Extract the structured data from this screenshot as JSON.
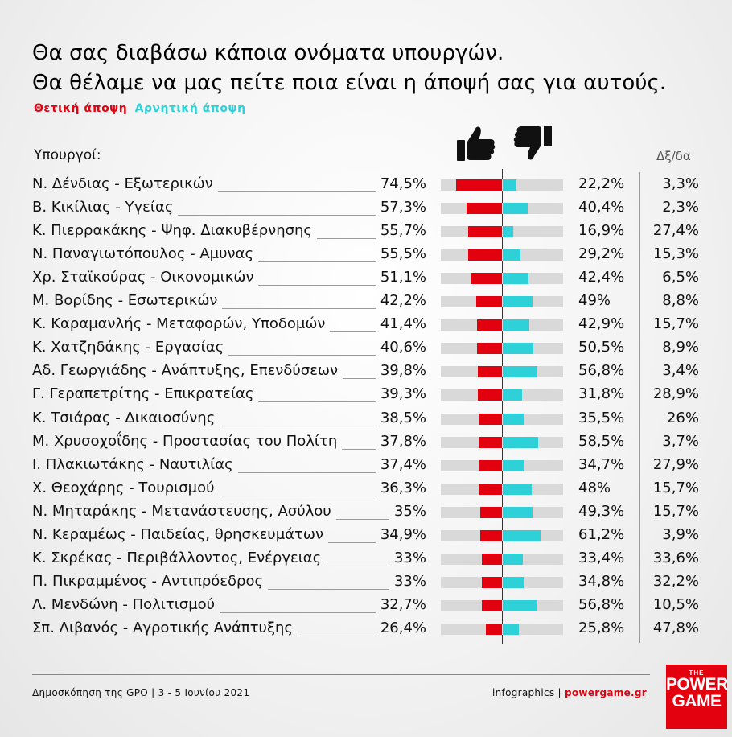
{
  "header": {
    "title_line1": "Θα σας διαβάσω κάποια ονόματα υπουργών.",
    "title_line2": "Θα θέλαμε να μας πείτε ποια είναι η άποψή σας για αυτούς."
  },
  "legend": {
    "positive": "Θετική άποψη",
    "negative": "Αρνητική άποψη"
  },
  "columns": {
    "ministers": "Υπουργοί:",
    "dk": "Δξ/δα"
  },
  "colors": {
    "positive": "#e3000f",
    "negative": "#2fd1d8",
    "track": "#d9d9d9"
  },
  "icons": {
    "positive": "thumbs-up-icon",
    "negative": "thumbs-down-icon"
  },
  "chart_data": {
    "type": "bar",
    "series_names": [
      "Θετική άποψη",
      "Αρνητική άποψη",
      "Δξ/δα"
    ],
    "rows": [
      {
        "name": "Ν. Δένδιας",
        "ministry": "Εξωτερικών",
        "pos": 74.5,
        "neg": 22.2,
        "dk": 3.3,
        "pos_label": "74,5%",
        "neg_label": "22,2%",
        "dk_label": "3,3%"
      },
      {
        "name": "Β. Κικίλιας",
        "ministry": "Υγείας",
        "pos": 57.3,
        "neg": 40.4,
        "dk": 2.3,
        "pos_label": "57,3%",
        "neg_label": "40,4%",
        "dk_label": "2,3%"
      },
      {
        "name": "Κ. Πιερρακάκης",
        "ministry": "Ψηφ. Διακυβέρνησης",
        "pos": 55.7,
        "neg": 16.9,
        "dk": 27.4,
        "pos_label": "55,7%",
        "neg_label": "16,9%",
        "dk_label": "27,4%"
      },
      {
        "name": "Ν. Παναγιωτόπουλος",
        "ministry": "Αμυνας",
        "pos": 55.5,
        "neg": 29.2,
        "dk": 15.3,
        "pos_label": "55,5%",
        "neg_label": "29,2%",
        "dk_label": "15,3%"
      },
      {
        "name": "Χρ. Σταϊκούρας",
        "ministry": "Οικονομικών",
        "pos": 51.1,
        "neg": 42.4,
        "dk": 6.5,
        "pos_label": "51,1%",
        "neg_label": "42,4%",
        "dk_label": "6,5%"
      },
      {
        "name": "Μ. Βορίδης",
        "ministry": "Εσωτερικών",
        "pos": 42.2,
        "neg": 49,
        "dk": 8.8,
        "pos_label": "42,2%",
        "neg_label": "49%",
        "dk_label": "8,8%"
      },
      {
        "name": "Κ. Καραμανλής",
        "ministry": "Μεταφορών, Υποδομών",
        "pos": 41.4,
        "neg": 42.9,
        "dk": 15.7,
        "pos_label": "41,4%",
        "neg_label": "42,9%",
        "dk_label": "15,7%"
      },
      {
        "name": "Κ. Χατζηδάκης",
        "ministry": "Εργασίας",
        "pos": 40.6,
        "neg": 50.5,
        "dk": 8.9,
        "pos_label": "40,6%",
        "neg_label": "50,5%",
        "dk_label": "8,9%"
      },
      {
        "name": "Αδ. Γεωργιάδης",
        "ministry": "Ανάπτυξης, Επενδύσεων",
        "pos": 39.8,
        "neg": 56.8,
        "dk": 3.4,
        "pos_label": "39,8%",
        "neg_label": "56,8%",
        "dk_label": "3,4%"
      },
      {
        "name": "Γ. Γεραπετρίτης",
        "ministry": "Επικρατείας",
        "pos": 39.3,
        "neg": 31.8,
        "dk": 28.9,
        "pos_label": "39,3%",
        "neg_label": "31,8%",
        "dk_label": "28,9%"
      },
      {
        "name": "Κ. Τσιάρας",
        "ministry": "Δικαιοσύνης",
        "pos": 38.5,
        "neg": 35.5,
        "dk": 26,
        "pos_label": "38,5%",
        "neg_label": "35,5%",
        "dk_label": "26%"
      },
      {
        "name": "Μ. Χρυσοχοΐδης",
        "ministry": "Προστασίας του Πολίτη",
        "pos": 37.8,
        "neg": 58.5,
        "dk": 3.7,
        "pos_label": "37,8%",
        "neg_label": "58,5%",
        "dk_label": "3,7%"
      },
      {
        "name": "Ι. Πλακιωτάκης",
        "ministry": "Ναυτιλίας",
        "pos": 37.4,
        "neg": 34.7,
        "dk": 27.9,
        "pos_label": "37,4%",
        "neg_label": "34,7%",
        "dk_label": "27,9%"
      },
      {
        "name": "Χ. Θεοχάρης",
        "ministry": "Τουρισμού",
        "pos": 36.3,
        "neg": 48,
        "dk": 15.7,
        "pos_label": "36,3%",
        "neg_label": "48%",
        "dk_label": "15,7%"
      },
      {
        "name": "Ν. Μηταράκης",
        "ministry": "Μετανάστευσης, Ασύλου",
        "pos": 35,
        "neg": 49.3,
        "dk": 15.7,
        "pos_label": "35%",
        "neg_label": "49,3%",
        "dk_label": "15,7%"
      },
      {
        "name": "Ν. Κεραμέως",
        "ministry": "Παιδείας, θρησκευμάτων",
        "pos": 34.9,
        "neg": 61.2,
        "dk": 3.9,
        "pos_label": "34,9%",
        "neg_label": "61,2%",
        "dk_label": "3,9%"
      },
      {
        "name": "Κ. Σκρέκας",
        "ministry": "Περιβάλλοντος, Ενέργειας",
        "pos": 33,
        "neg": 33.4,
        "dk": 33.6,
        "pos_label": "33%",
        "neg_label": "33,4%",
        "dk_label": "33,6%"
      },
      {
        "name": "Π. Πικραμμένος",
        "ministry": "Αντιπρόεδρος",
        "pos": 33,
        "neg": 34.8,
        "dk": 32.2,
        "pos_label": "33%",
        "neg_label": "34,8%",
        "dk_label": "32,2%"
      },
      {
        "name": "Λ. Μενδώνη",
        "ministry": "Πολιτισμού",
        "pos": 32.7,
        "neg": 56.8,
        "dk": 10.5,
        "pos_label": "32,7%",
        "neg_label": "56,8%",
        "dk_label": "10,5%"
      },
      {
        "name": "Σπ. Λιβανός",
        "ministry": "Αγροτικής Ανάπτυξης",
        "pos": 26.4,
        "neg": 25.8,
        "dk": 47.8,
        "pos_label": "26,4%",
        "neg_label": "25,8%",
        "dk_label": "47,8%"
      }
    ]
  },
  "footer": {
    "source": "Δημοσκόπηση της GPO | 3 - 5 Ιουνίου 2021",
    "credit": "infographics |",
    "site": "powergame.gr",
    "logo_top": "THE",
    "logo_line1": "POWER",
    "logo_line2": "GAME"
  }
}
